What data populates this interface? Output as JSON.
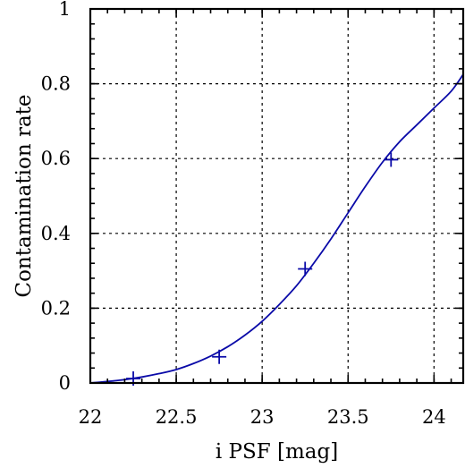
{
  "chart_data": {
    "type": "line",
    "title": "",
    "xlabel": "i PSF [mag]",
    "ylabel": "Contamination rate",
    "xlim": [
      22,
      24.17
    ],
    "ylim": [
      0,
      1
    ],
    "x_ticks": [
      22,
      22.5,
      23,
      23.5,
      24
    ],
    "x_tick_labels": [
      "22",
      "22.5",
      "23",
      "23.5",
      "24"
    ],
    "y_ticks": [
      0,
      0.2,
      0.4,
      0.6,
      0.8,
      1
    ],
    "y_tick_labels": [
      "0",
      "0.2",
      "0.4",
      "0.6",
      "0.8",
      "1"
    ],
    "grid": true,
    "series": [
      {
        "type": "line",
        "color": "#0a0aa8",
        "x": [
          22.0,
          22.1,
          22.2,
          22.3,
          22.4,
          22.5,
          22.6,
          22.7,
          22.8,
          22.9,
          23.0,
          23.1,
          23.2,
          23.3,
          23.4,
          23.5,
          23.6,
          23.7,
          23.8,
          23.9,
          24.0,
          24.1,
          24.17
        ],
        "y": [
          0.0,
          0.004,
          0.009,
          0.016,
          0.025,
          0.036,
          0.052,
          0.072,
          0.097,
          0.128,
          0.165,
          0.21,
          0.26,
          0.32,
          0.385,
          0.455,
          0.525,
          0.59,
          0.645,
          0.69,
          0.735,
          0.78,
          0.825
        ]
      },
      {
        "type": "scatter",
        "marker": "plus",
        "color": "#0a0aa8",
        "x": [
          22.25,
          22.75,
          23.25,
          23.75
        ],
        "y": [
          0.012,
          0.07,
          0.305,
          0.597
        ]
      }
    ]
  }
}
